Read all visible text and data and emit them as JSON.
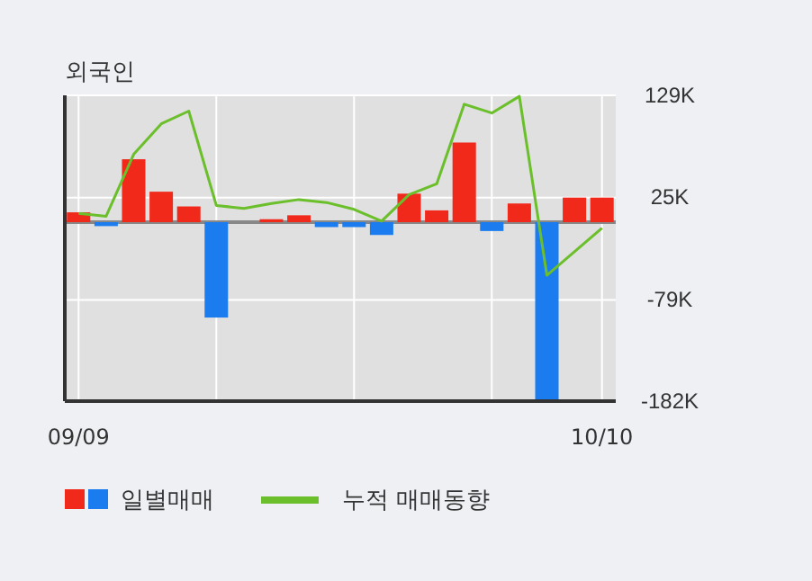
{
  "chart_data": {
    "type": "bar",
    "title": "외국인",
    "categories": [
      "09/09",
      null,
      null,
      null,
      null,
      null,
      null,
      null,
      null,
      null,
      null,
      null,
      null,
      null,
      null,
      null,
      null,
      null,
      null,
      "10/10"
    ],
    "series": [
      {
        "name": "일별매매",
        "colors": [
          "#f0291b",
          "#1b7cf0",
          "#f0291b",
          "#f0291b",
          "#f0291b",
          "#1b7cf0",
          "#f0291b",
          "#f0291b",
          "#f0291b",
          "#1b7cf0",
          "#1b7cf0",
          "#1b7cf0",
          "#f0291b",
          "#f0291b",
          "#f0291b",
          "#1b7cf0",
          "#f0291b",
          "#1b7cf0",
          "#f0291b",
          "#f0291b"
        ],
        "values": [
          10,
          -4,
          64,
          31,
          16,
          -97,
          0,
          3,
          7,
          -5,
          -5,
          -13,
          29,
          12,
          81,
          -9,
          19,
          -182,
          25,
          25
        ]
      },
      {
        "name": "누적 매매동향",
        "type": "line",
        "color": "#6abf2a",
        "values": [
          9,
          6,
          69,
          100,
          113,
          17,
          14,
          19,
          23,
          20,
          13,
          1,
          28,
          39,
          120,
          111,
          128,
          -54,
          -30,
          -6
        ]
      }
    ],
    "ylim": [
      -182,
      129
    ],
    "yticks": [
      {
        "value": 129,
        "label": "129K"
      },
      {
        "value": 25,
        "label": "25K"
      },
      {
        "value": -79,
        "label": "-79K"
      },
      {
        "value": -182,
        "label": "-182K"
      }
    ],
    "grid": true,
    "legend": "bottom"
  }
}
